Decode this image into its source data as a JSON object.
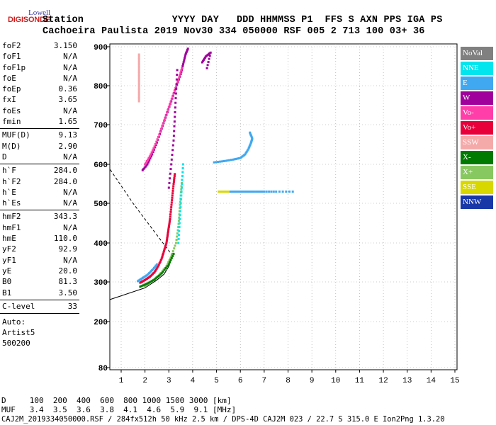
{
  "logo": {
    "lowell": "Lowell",
    "digisonde": "DIGISONDE"
  },
  "header": {
    "line1": "Station               YYYY DAY   DDD HHMMSS P1  FFS S AXN PPS IGA PS",
    "line2": "Cachoeira Paulista 2019 Nov30 334 050000 RSF 005 2 713 100 03+ 36"
  },
  "params": [
    {
      "label": "foF2",
      "value": "3.150"
    },
    {
      "label": "foF1",
      "value": "N/A"
    },
    {
      "label": "foF1p",
      "value": "N/A"
    },
    {
      "label": "foE",
      "value": "N/A"
    },
    {
      "label": "foEp",
      "value": "0.36"
    },
    {
      "label": "fxI",
      "value": "3.65"
    },
    {
      "label": "foEs",
      "value": "N/A"
    },
    {
      "label": "fmin",
      "value": "1.65"
    },
    {
      "sep": true
    },
    {
      "label": "MUF(D)",
      "value": "9.13"
    },
    {
      "label": "M(D)",
      "value": "2.90"
    },
    {
      "label": "D",
      "value": "N/A"
    },
    {
      "sep": true
    },
    {
      "label": "h`F",
      "value": "284.0"
    },
    {
      "label": "h`F2",
      "value": "284.0"
    },
    {
      "label": "h`E",
      "value": "N/A"
    },
    {
      "label": "h`Es",
      "value": "N/A"
    },
    {
      "sep": true
    },
    {
      "label": "hmF2",
      "value": "343.3"
    },
    {
      "label": "hmF1",
      "value": "N/A"
    },
    {
      "label": "hmE",
      "value": "110.0"
    },
    {
      "label": "yF2",
      "value": "92.9"
    },
    {
      "label": "yF1",
      "value": "N/A"
    },
    {
      "label": "yE",
      "value": "20.0"
    },
    {
      "label": "B0",
      "value": "81.3"
    },
    {
      "label": "B1",
      "value": "3.50"
    },
    {
      "sep": true
    },
    {
      "label": "C-level",
      "value": "33"
    },
    {
      "sep": true
    }
  ],
  "auto": [
    "Auto:",
    "Artist5",
    "500200"
  ],
  "legend": [
    {
      "label": "NoVal",
      "color": "#808080",
      "text": "#ffffff"
    },
    {
      "label": "NNE",
      "color": "#00e5ee",
      "text": "#ffffff"
    },
    {
      "label": "E",
      "color": "#40a8f0",
      "text": "#ffffff"
    },
    {
      "label": "W",
      "color": "#a0009c",
      "text": "#ffffff"
    },
    {
      "label": "Vo-",
      "color": "#ff3eaa",
      "text": "#ffffff"
    },
    {
      "label": "Vo+",
      "color": "#e8003a",
      "text": "#ffffff"
    },
    {
      "label": "SSW",
      "color": "#f5aaaa",
      "text": "#ffffff"
    },
    {
      "label": "X-",
      "color": "#007a00",
      "text": "#ffffff"
    },
    {
      "label": "X+",
      "color": "#88c860",
      "text": "#ffffff"
    },
    {
      "label": "SSE",
      "color": "#d8d800",
      "text": "#ffffff"
    },
    {
      "label": "NNW",
      "color": "#1838a8",
      "text": "#ffffff"
    }
  ],
  "footer": {
    "d_row": "D     100  200  400  600  800 1000 1500 3000 [km]",
    "muf_row": "MUF   3.4  3.5  3.6  3.8  4.1  4.6  5.9  9.1 [MHz]",
    "file_row": "CAJ2M_2019334050000.RSF / 284fx512h 50 kHz 2.5 km / DPS-4D CAJ2M 023 / 22.7 S 315.0 E Ion2Png 1.3.20"
  },
  "chart_data": {
    "type": "scatter",
    "xlabel": "",
    "ylabel": "",
    "xlim": [
      1,
      15
    ],
    "ylim": [
      80,
      900
    ],
    "x_ticks": [
      1,
      2,
      3,
      4,
      5,
      6,
      7,
      8,
      9,
      10,
      11,
      12,
      13,
      14,
      15
    ],
    "y_ticks": [
      80,
      200,
      300,
      400,
      500,
      600,
      700,
      800,
      900
    ],
    "grid": "dotted",
    "profile_solid": [
      [
        0.0,
        245
      ],
      [
        1.0,
        265
      ],
      [
        1.5,
        275
      ],
      [
        2.0,
        285
      ],
      [
        2.5,
        305
      ],
      [
        2.8,
        320
      ],
      [
        3.0,
        340
      ],
      [
        3.05,
        355
      ],
      [
        3.1,
        368
      ]
    ],
    "profile_dashed": [
      [
        0.0,
        625
      ],
      [
        0.5,
        590
      ],
      [
        1.0,
        545
      ],
      [
        1.5,
        500
      ],
      [
        2.0,
        460
      ],
      [
        2.5,
        420
      ],
      [
        2.75,
        400
      ],
      [
        2.95,
        385
      ],
      [
        3.1,
        370
      ]
    ],
    "traces": [
      {
        "color": "#e8003a",
        "pts": [
          [
            1.8,
            298
          ],
          [
            2.0,
            305
          ],
          [
            2.2,
            313
          ],
          [
            2.4,
            325
          ],
          [
            2.55,
            340
          ],
          [
            2.7,
            360
          ],
          [
            2.8,
            380
          ],
          [
            2.9,
            400
          ],
          [
            2.95,
            420
          ],
          [
            3.0,
            440
          ],
          [
            3.05,
            460
          ],
          [
            3.1,
            490
          ],
          [
            3.15,
            520
          ],
          [
            3.2,
            550
          ],
          [
            3.25,
            575
          ]
        ]
      },
      {
        "color": "#40a8f0",
        "pts": [
          [
            1.7,
            302
          ],
          [
            1.9,
            310
          ],
          [
            2.1,
            318
          ],
          [
            2.3,
            330
          ],
          [
            2.5,
            345
          ]
        ]
      },
      {
        "color": "#88c860",
        "pts": [
          [
            2.0,
            290
          ],
          [
            2.3,
            302
          ],
          [
            2.6,
            318
          ],
          [
            2.9,
            340
          ],
          [
            3.1,
            365
          ],
          [
            3.3,
            400
          ],
          [
            3.4,
            440
          ],
          [
            3.45,
            480
          ],
          [
            3.5,
            520
          ],
          [
            3.55,
            560
          ]
        ]
      },
      {
        "color": "#007a00",
        "pts": [
          [
            1.8,
            288
          ],
          [
            2.1,
            296
          ],
          [
            2.4,
            306
          ],
          [
            2.7,
            322
          ],
          [
            3.0,
            345
          ],
          [
            3.2,
            372
          ]
        ]
      },
      {
        "color": "#a0009c",
        "pts": [
          [
            1.9,
            585
          ],
          [
            2.1,
            600
          ],
          [
            2.3,
            625
          ],
          [
            2.5,
            655
          ],
          [
            2.7,
            690
          ],
          [
            2.9,
            725
          ],
          [
            3.1,
            760
          ],
          [
            3.3,
            795
          ],
          [
            3.5,
            830
          ],
          [
            3.6,
            855
          ],
          [
            3.7,
            880
          ],
          [
            3.8,
            895
          ]
        ]
      },
      {
        "color": "#ff3eaa",
        "pts": [
          [
            2.0,
            600
          ],
          [
            2.2,
            620
          ],
          [
            2.4,
            645
          ],
          [
            2.6,
            675
          ],
          [
            2.8,
            710
          ],
          [
            3.0,
            745
          ],
          [
            3.2,
            780
          ],
          [
            3.4,
            815
          ],
          [
            3.55,
            845
          ]
        ]
      },
      {
        "color": "#a0009c",
        "pts": [
          [
            3.0,
            540
          ],
          [
            3.1,
            600
          ],
          [
            3.2,
            660
          ],
          [
            3.25,
            720
          ],
          [
            3.3,
            780
          ],
          [
            3.35,
            840
          ]
        ]
      },
      {
        "color": "#40a8f0",
        "pts": [
          [
            4.9,
            605
          ],
          [
            5.3,
            608
          ],
          [
            5.7,
            612
          ],
          [
            6.0,
            616
          ],
          [
            6.2,
            625
          ],
          [
            6.35,
            640
          ],
          [
            6.45,
            655
          ],
          [
            6.5,
            665
          ],
          [
            6.4,
            680
          ]
        ]
      },
      {
        "color": "#40a8f0",
        "pts": [
          [
            5.1,
            530
          ],
          [
            5.5,
            530
          ],
          [
            5.9,
            530
          ],
          [
            6.3,
            530
          ],
          [
            6.6,
            530
          ],
          [
            7.0,
            530
          ],
          [
            7.5,
            530
          ],
          [
            8.2,
            530
          ]
        ]
      },
      {
        "color": "#d8d800",
        "pts": [
          [
            5.1,
            530
          ],
          [
            5.3,
            530
          ],
          [
            5.5,
            530
          ]
        ]
      },
      {
        "color": "#00e5ee",
        "pts": [
          [
            3.4,
            400
          ],
          [
            3.45,
            450
          ],
          [
            3.5,
            500
          ],
          [
            3.55,
            550
          ],
          [
            3.6,
            600
          ]
        ]
      },
      {
        "color": "#f5aaaa",
        "pts": [
          [
            1.75,
            760
          ],
          [
            1.75,
            780
          ],
          [
            1.75,
            800
          ],
          [
            1.75,
            820
          ],
          [
            1.75,
            840
          ],
          [
            1.75,
            860
          ],
          [
            1.75,
            880
          ]
        ]
      },
      {
        "color": "#a0009c",
        "pts": [
          [
            4.4,
            860
          ],
          [
            4.55,
            875
          ],
          [
            4.75,
            885
          ],
          [
            4.6,
            845
          ]
        ]
      }
    ]
  }
}
